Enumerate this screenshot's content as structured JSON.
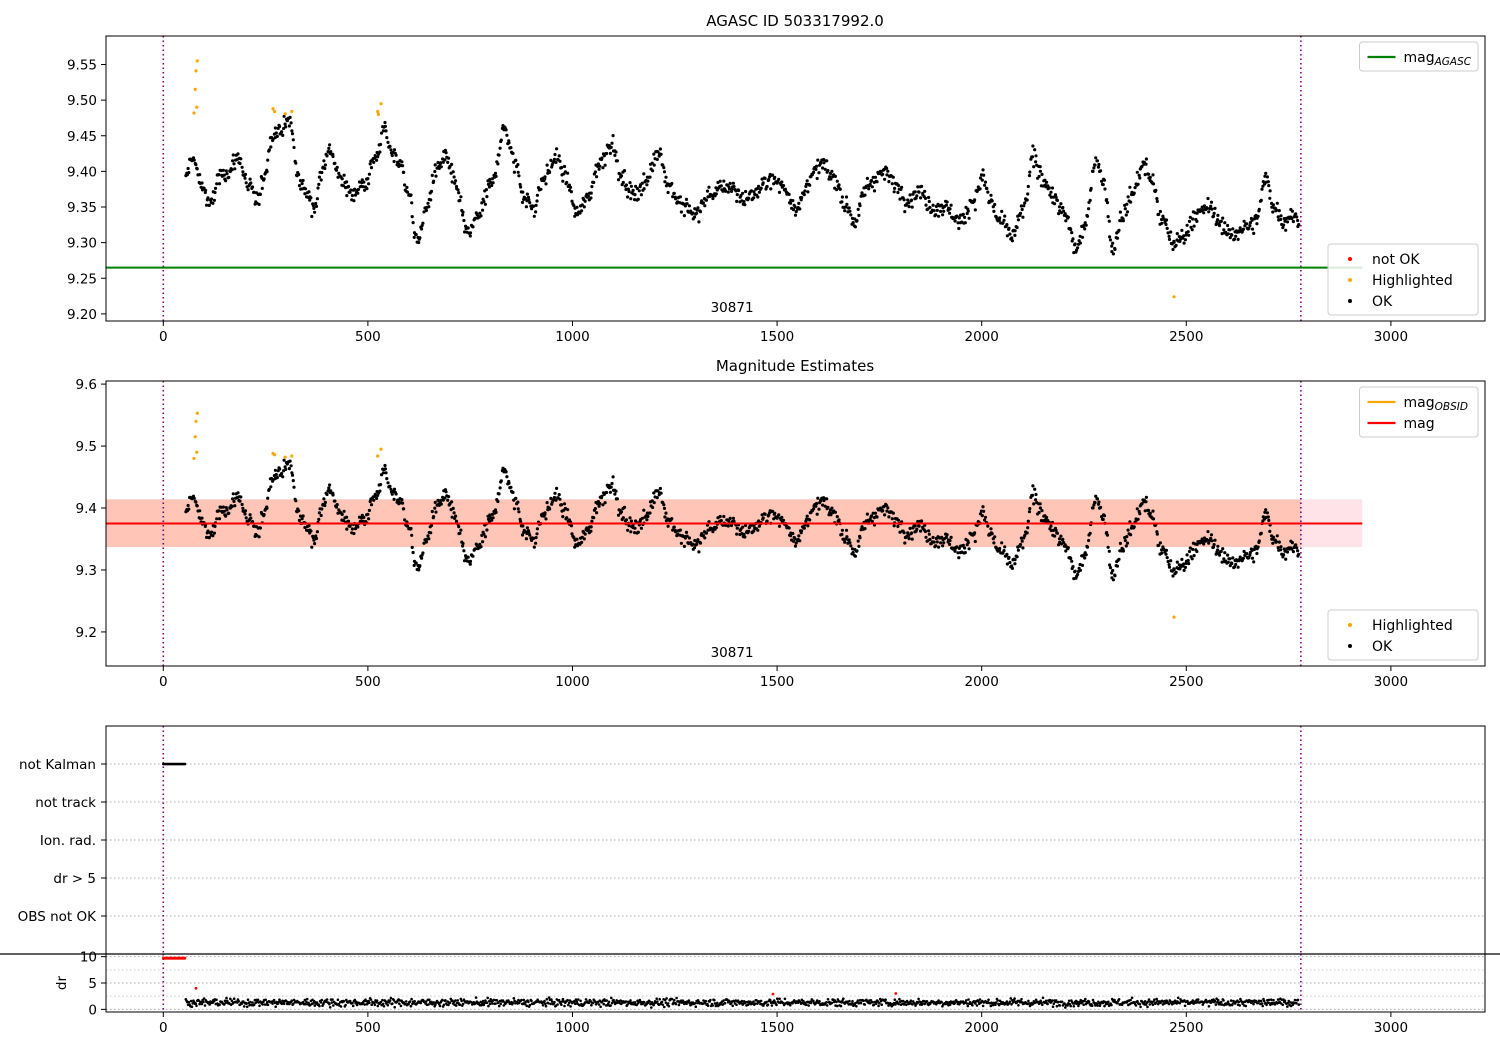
{
  "figure": {
    "title": "AGASC ID 503317992.0",
    "colors": {
      "ok": "#000000",
      "highlighted": "#ffa500",
      "not_ok": "#ff0000",
      "mag_agasc": "#008000",
      "mag_obsid": "#ffa500",
      "mag": "#ff0000",
      "band_outer": "#ffc0cb",
      "band_inner": "#ffa07a",
      "obs_boundary": "#800080",
      "reference_line": "#000000"
    }
  },
  "chart_data": [
    {
      "type": "scatter",
      "title": "AGASC ID 503317992.0",
      "xlabel": "",
      "ylabel": "",
      "xlim": [
        -140,
        3230
      ],
      "ylim": [
        9.19,
        9.59
      ],
      "xticks": [
        0,
        500,
        1000,
        1500,
        2000,
        2500,
        3000
      ],
      "yticks": [
        9.2,
        9.25,
        9.3,
        9.35,
        9.4,
        9.45,
        9.5,
        9.55
      ],
      "ytick_labels": [
        "9.20",
        "9.25",
        "9.30",
        "9.35",
        "9.40",
        "9.45",
        "9.50",
        "9.55"
      ],
      "observation_boundaries": [
        0,
        2780
      ],
      "observation_label": "30871",
      "observation_label_x": 1390,
      "lines": [
        {
          "name": "mag_AGASC",
          "y": 9.265,
          "x_range": [
            -140,
            2930
          ],
          "color": "#008000"
        }
      ],
      "highlighted_points": [
        {
          "x": 75,
          "y": 9.482
        },
        {
          "x": 78,
          "y": 9.515
        },
        {
          "x": 80,
          "y": 9.541
        },
        {
          "x": 83,
          "y": 9.555
        },
        {
          "x": 82,
          "y": 9.49
        },
        {
          "x": 268,
          "y": 9.488
        },
        {
          "x": 272,
          "y": 9.484
        },
        {
          "x": 298,
          "y": 9.481
        },
        {
          "x": 314,
          "y": 9.484
        },
        {
          "x": 524,
          "y": 9.484
        },
        {
          "x": 526,
          "y": 9.48
        },
        {
          "x": 532,
          "y": 9.495
        },
        {
          "x": 2470,
          "y": 9.224
        }
      ],
      "ok_curve": {
        "x_start": 55,
        "x_end": 2775,
        "n_points": 1450,
        "nodes": [
          [
            55,
            9.39
          ],
          [
            70,
            9.42
          ],
          [
            95,
            9.38
          ],
          [
            115,
            9.35
          ],
          [
            135,
            9.39
          ],
          [
            160,
            9.4
          ],
          [
            185,
            9.42
          ],
          [
            205,
            9.38
          ],
          [
            230,
            9.36
          ],
          [
            250,
            9.4
          ],
          [
            265,
            9.45
          ],
          [
            285,
            9.46
          ],
          [
            310,
            9.47
          ],
          [
            330,
            9.39
          ],
          [
            350,
            9.37
          ],
          [
            370,
            9.35
          ],
          [
            390,
            9.41
          ],
          [
            410,
            9.43
          ],
          [
            430,
            9.39
          ],
          [
            460,
            9.37
          ],
          [
            490,
            9.38
          ],
          [
            520,
            9.42
          ],
          [
            540,
            9.46
          ],
          [
            555,
            9.43
          ],
          [
            580,
            9.41
          ],
          [
            600,
            9.37
          ],
          [
            620,
            9.3
          ],
          [
            645,
            9.35
          ],
          [
            665,
            9.4
          ],
          [
            690,
            9.42
          ],
          [
            715,
            9.38
          ],
          [
            745,
            9.31
          ],
          [
            770,
            9.34
          ],
          [
            800,
            9.38
          ],
          [
            835,
            9.46
          ],
          [
            860,
            9.41
          ],
          [
            885,
            9.36
          ],
          [
            905,
            9.35
          ],
          [
            930,
            9.39
          ],
          [
            960,
            9.42
          ],
          [
            985,
            9.39
          ],
          [
            1010,
            9.34
          ],
          [
            1035,
            9.36
          ],
          [
            1065,
            9.41
          ],
          [
            1095,
            9.44
          ],
          [
            1120,
            9.39
          ],
          [
            1145,
            9.37
          ],
          [
            1175,
            9.38
          ],
          [
            1210,
            9.43
          ],
          [
            1235,
            9.38
          ],
          [
            1270,
            9.35
          ],
          [
            1300,
            9.34
          ],
          [
            1340,
            9.37
          ],
          [
            1385,
            9.38
          ],
          [
            1420,
            9.36
          ],
          [
            1450,
            9.37
          ],
          [
            1480,
            9.39
          ],
          [
            1510,
            9.38
          ],
          [
            1550,
            9.35
          ],
          [
            1580,
            9.39
          ],
          [
            1610,
            9.41
          ],
          [
            1640,
            9.39
          ],
          [
            1670,
            9.35
          ],
          [
            1690,
            9.33
          ],
          [
            1720,
            9.38
          ],
          [
            1760,
            9.4
          ],
          [
            1790,
            9.38
          ],
          [
            1820,
            9.36
          ],
          [
            1850,
            9.37
          ],
          [
            1880,
            9.35
          ],
          [
            1910,
            9.35
          ],
          [
            1950,
            9.33
          ],
          [
            1980,
            9.36
          ],
          [
            2005,
            9.39
          ],
          [
            2020,
            9.36
          ],
          [
            2045,
            9.33
          ],
          [
            2075,
            9.31
          ],
          [
            2105,
            9.35
          ],
          [
            2125,
            9.42
          ],
          [
            2150,
            9.39
          ],
          [
            2180,
            9.36
          ],
          [
            2210,
            9.33
          ],
          [
            2230,
            9.29
          ],
          [
            2255,
            9.33
          ],
          [
            2280,
            9.42
          ],
          [
            2300,
            9.38
          ],
          [
            2320,
            9.29
          ],
          [
            2345,
            9.34
          ],
          [
            2370,
            9.37
          ],
          [
            2395,
            9.41
          ],
          [
            2415,
            9.39
          ],
          [
            2440,
            9.33
          ],
          [
            2470,
            9.3
          ],
          [
            2495,
            9.31
          ],
          [
            2525,
            9.34
          ],
          [
            2555,
            9.35
          ],
          [
            2580,
            9.33
          ],
          [
            2610,
            9.31
          ],
          [
            2640,
            9.32
          ],
          [
            2670,
            9.33
          ],
          [
            2695,
            9.39
          ],
          [
            2715,
            9.35
          ],
          [
            2740,
            9.33
          ],
          [
            2760,
            9.34
          ],
          [
            2775,
            9.33
          ]
        ],
        "scatter": 0.016
      },
      "legends": [
        {
          "position": "upper-right",
          "entries": [
            {
              "label": "mag",
              "subscript": "AGASC",
              "marker": "line",
              "color": "#008000"
            }
          ]
        },
        {
          "position": "lower-right",
          "entries": [
            {
              "label": "not OK",
              "marker": "dot",
              "color": "#ff0000"
            },
            {
              "label": "Highlighted",
              "marker": "dot",
              "color": "#ffa500"
            },
            {
              "label": "OK",
              "marker": "dot",
              "color": "#000000"
            }
          ]
        }
      ]
    },
    {
      "type": "scatter",
      "title": "Magnitude Estimates",
      "xlabel": "",
      "ylabel": "",
      "xlim": [
        -140,
        3230
      ],
      "ylim": [
        9.145,
        9.605
      ],
      "xticks": [
        0,
        500,
        1000,
        1500,
        2000,
        2500,
        3000
      ],
      "yticks": [
        9.2,
        9.3,
        9.4,
        9.5,
        9.6
      ],
      "ytick_labels": [
        "9.2",
        "9.3",
        "9.4",
        "9.5",
        "9.6"
      ],
      "observation_boundaries": [
        0,
        2780
      ],
      "observation_label": "30871",
      "observation_label_x": 1390,
      "lines": [
        {
          "name": "mag",
          "y": 9.375,
          "x_range": [
            -140,
            2930
          ],
          "color": "#ff0000"
        }
      ],
      "bands": [
        {
          "y0": 9.337,
          "y1": 9.414,
          "x_range": [
            -140,
            2930
          ],
          "color": "#ffc0cb"
        },
        {
          "y0": 9.337,
          "y1": 9.414,
          "x_range": [
            -140,
            2780
          ],
          "color": "#ffa07a"
        }
      ],
      "highlighted_points": [
        {
          "x": 75,
          "y": 9.48
        },
        {
          "x": 78,
          "y": 9.515
        },
        {
          "x": 80,
          "y": 9.54
        },
        {
          "x": 83,
          "y": 9.553
        },
        {
          "x": 82,
          "y": 9.49
        },
        {
          "x": 268,
          "y": 9.488
        },
        {
          "x": 272,
          "y": 9.486
        },
        {
          "x": 298,
          "y": 9.482
        },
        {
          "x": 314,
          "y": 9.484
        },
        {
          "x": 524,
          "y": 9.484
        },
        {
          "x": 532,
          "y": 9.495
        },
        {
          "x": 2470,
          "y": 9.224
        }
      ],
      "ok_curve_ref": 0,
      "legends": [
        {
          "position": "upper-right",
          "entries": [
            {
              "label": "mag",
              "subscript": "OBSID",
              "marker": "line",
              "color": "#ffa500"
            },
            {
              "label": "mag",
              "marker": "line",
              "color": "#ff0000"
            }
          ]
        },
        {
          "position": "lower-right",
          "entries": [
            {
              "label": "Highlighted",
              "marker": "dot",
              "color": "#ffa500"
            },
            {
              "label": "OK",
              "marker": "dot",
              "color": "#000000"
            }
          ]
        }
      ]
    },
    {
      "type": "scatter",
      "title": "",
      "xlabel": "",
      "ylabel": "",
      "xlim": [
        -140,
        3230
      ],
      "categories": [
        "OBS not OK",
        "dr > 5",
        "Ion. rad.",
        "not track",
        "not Kalman"
      ],
      "observation_boundaries": [
        0,
        2780
      ],
      "flag_segments": [
        {
          "category": "not Kalman",
          "x_start": 0,
          "x_end": 55
        }
      ]
    },
    {
      "type": "scatter",
      "title": "",
      "xlabel": "",
      "ylabel": "dr",
      "xlim": [
        -140,
        3230
      ],
      "ylim": [
        -0.5,
        10.5
      ],
      "yticks": [
        0,
        5,
        10
      ],
      "ytick_labels": [
        "0",
        "5",
        "10"
      ],
      "observation_boundaries": [
        0,
        2780
      ],
      "clipped_points": {
        "y": 9.7,
        "x_start": 0,
        "x_end": 55,
        "color": "#ff0000"
      },
      "red_points": [
        {
          "x": 80,
          "y": 4.0
        },
        {
          "x": 1490,
          "y": 2.9
        },
        {
          "x": 1790,
          "y": 3.0
        }
      ],
      "dr_series": {
        "x_start": 55,
        "x_end": 2775,
        "n_points": 1450,
        "mean": 1.3,
        "spread": 1.1
      }
    }
  ]
}
